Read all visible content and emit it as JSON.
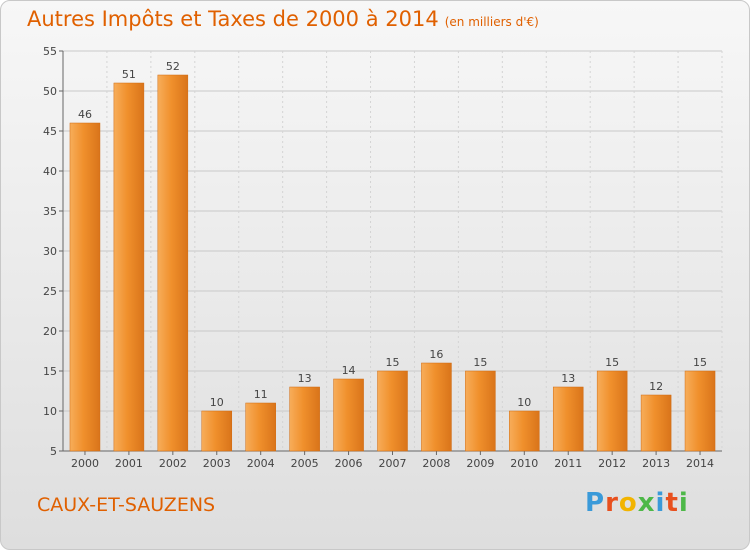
{
  "chart_data": {
    "type": "bar",
    "title": "Autres Impôts et Taxes de 2000 à 2014",
    "subtitle": "(en milliers d'€)",
    "categories": [
      "2000",
      "2001",
      "2002",
      "2003",
      "2004",
      "2005",
      "2006",
      "2007",
      "2008",
      "2009",
      "2010",
      "2011",
      "2012",
      "2013",
      "2014"
    ],
    "values": [
      46,
      51,
      52,
      10,
      11,
      13,
      14,
      15,
      16,
      15,
      10,
      13,
      15,
      12,
      15
    ],
    "ylim": [
      5,
      55
    ],
    "yticks": [
      5,
      10,
      15,
      20,
      25,
      30,
      35,
      40,
      45,
      50,
      55
    ],
    "grid": true,
    "bar_color": "#f0902c",
    "bar_color_light": "#f7ad5a",
    "bar_color_dark": "#d9741a"
  },
  "commune": "CAUX-ET-SAUZENS",
  "logo": {
    "letters": [
      "P",
      "r",
      "o",
      "x",
      "i",
      "t",
      "i"
    ],
    "colors": [
      "#3a9ad9",
      "#e8501e",
      "#f2b400",
      "#4db848",
      "#3a9ad9",
      "#e8501e",
      "#4db848"
    ]
  }
}
